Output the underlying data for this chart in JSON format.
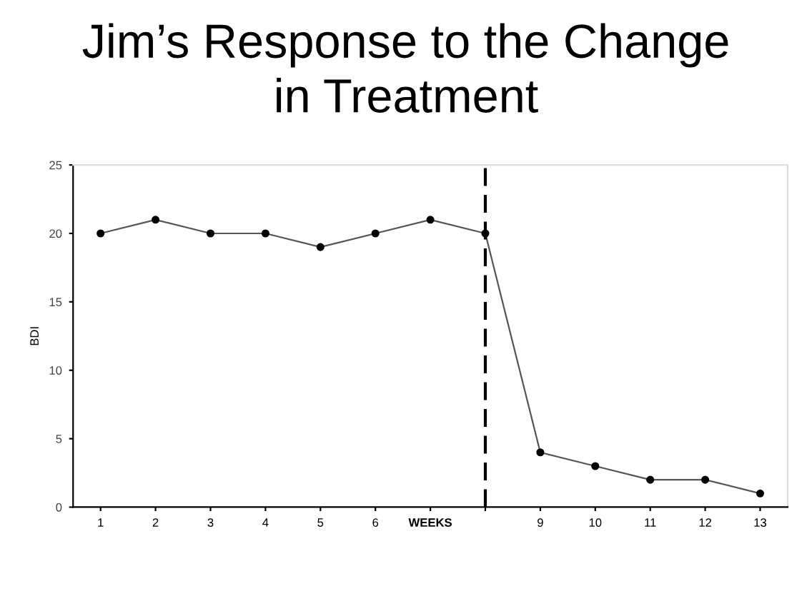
{
  "chart_data": {
    "type": "line",
    "title": "Jim’s Response to the Change\nin Treatment",
    "ylabel": "BDI",
    "x": [
      1,
      2,
      3,
      4,
      5,
      6,
      7,
      8,
      9,
      10,
      11,
      12,
      13
    ],
    "series": [
      {
        "color": "#555555",
        "values": [
          20,
          21,
          20,
          20,
          19,
          20,
          21,
          20,
          4,
          3,
          2,
          2,
          1
        ]
      }
    ],
    "xlim": [
      0.5,
      13.5
    ],
    "xticks": [
      1,
      2,
      3,
      4,
      5,
      6,
      {
        "value": 7,
        "label": "WEEKS"
      },
      {
        "value": 8,
        "label": null
      },
      9,
      10,
      11,
      12,
      13
    ],
    "ylim": [
      0,
      25
    ],
    "yticks": [
      0,
      5,
      10,
      15,
      20,
      25
    ],
    "ref_lines": [
      {
        "axis": "x",
        "value": 8,
        "color": "#000000",
        "line_style": "dashed"
      }
    ],
    "marker": "circle",
    "line_style": "solid",
    "grid": false,
    "legend": false
  }
}
